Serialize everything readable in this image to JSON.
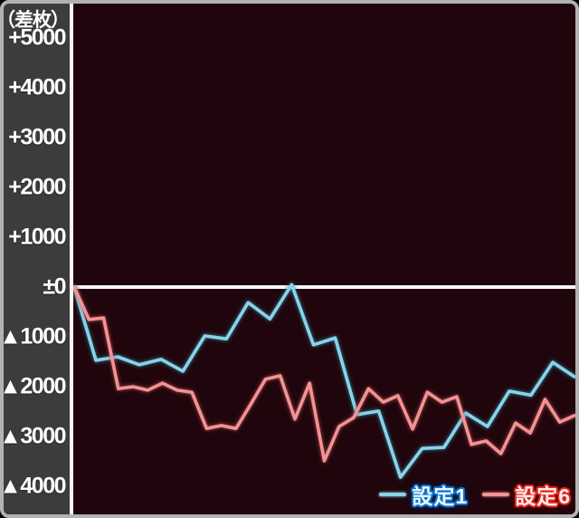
{
  "chart_data": {
    "type": "line",
    "title": "",
    "y_axis": {
      "unit_label": "（差枚）",
      "ticks": [
        {
          "value": 5000,
          "label": "+5000"
        },
        {
          "value": 4000,
          "label": "+4000"
        },
        {
          "value": 3000,
          "label": "+3000"
        },
        {
          "value": 2000,
          "label": "+2000"
        },
        {
          "value": 1000,
          "label": "+1000"
        },
        {
          "value": 0,
          "label": "±0"
        },
        {
          "value": -1000,
          "label": "▲1000"
        },
        {
          "value": -2000,
          "label": "▲2000"
        },
        {
          "value": -3000,
          "label": "▲3000"
        },
        {
          "value": -4000,
          "label": "▲4000"
        }
      ],
      "ylim": [
        -4650,
        5550
      ],
      "units_per_gridstep": 1000
    },
    "x_axis": {
      "label": "",
      "tick_labels": []
    },
    "zero_line": true,
    "grid": false,
    "legend_position": "bottom-right",
    "series": [
      {
        "name": "設定1",
        "color": "#8ad3e8",
        "glow_color": "#2f8ba8",
        "values": [
          0,
          -1470,
          -1400,
          -1560,
          -1450,
          -1690,
          -980,
          -1040,
          -310,
          -640,
          50,
          -1160,
          -1020,
          -2560,
          -2490,
          -3820,
          -3240,
          -3220,
          -2530,
          -2800,
          -2090,
          -2170,
          -1510,
          -1800
        ]
      },
      {
        "name": "設定6",
        "color": "#f19395",
        "glow_color": "#b4494d",
        "values": [
          0,
          -650,
          -620,
          -2040,
          -2000,
          -2070,
          -1930,
          -2070,
          -2110,
          -2840,
          -2780,
          -2840,
          -2350,
          -1850,
          -1780,
          -2650,
          -1930,
          -3490,
          -2800,
          -2620,
          -2040,
          -2310,
          -2180,
          -2850,
          -2110,
          -2310,
          -2200,
          -3160,
          -3090,
          -3345,
          -2730,
          -2930,
          -2255,
          -2710,
          -2580
        ]
      }
    ]
  },
  "legend": {
    "items": [
      {
        "label": "設定1",
        "text_color": "#e9f8ff",
        "outline_color": "#0e72c8",
        "glow_color": "#003a80",
        "dash_color": "#8ad3e8"
      },
      {
        "label": "設定6",
        "text_color": "#ffeceb",
        "outline_color": "#e3241d",
        "glow_color": "#7a0000",
        "dash_color": "#f19395"
      }
    ]
  },
  "colors": {
    "frame_border": "#b2b2b2",
    "gutter_bg": "#3c3c3c",
    "plot_bg": "#20060c",
    "axis_line": "#f5f5f5",
    "tick_text": "#ffffff"
  }
}
